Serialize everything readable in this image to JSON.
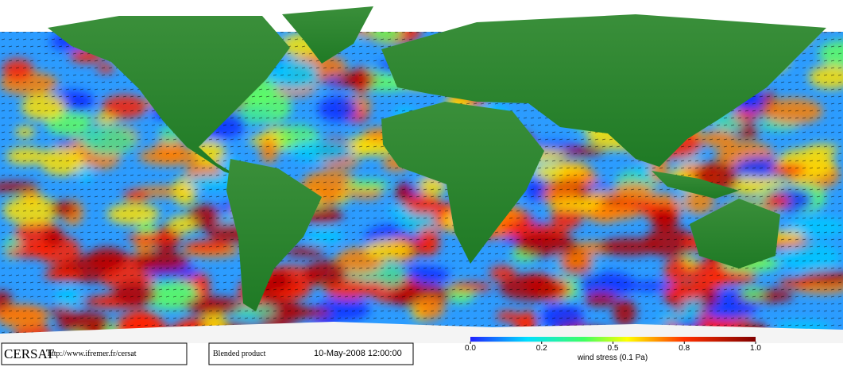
{
  "footer": {
    "logo": "CERSAT",
    "url": "http://www.ifremer.fr/cersat",
    "product": "Blended product",
    "datetime": "10-May-2008 12:00:00"
  },
  "colorbar": {
    "label": "wind stress (0.1 Pa)",
    "ticks": [
      {
        "value": 0,
        "label": "0.0"
      },
      0.2,
      0.5,
      0.8,
      {
        "value": 1,
        "label": "1.0"
      }
    ]
  }
}
